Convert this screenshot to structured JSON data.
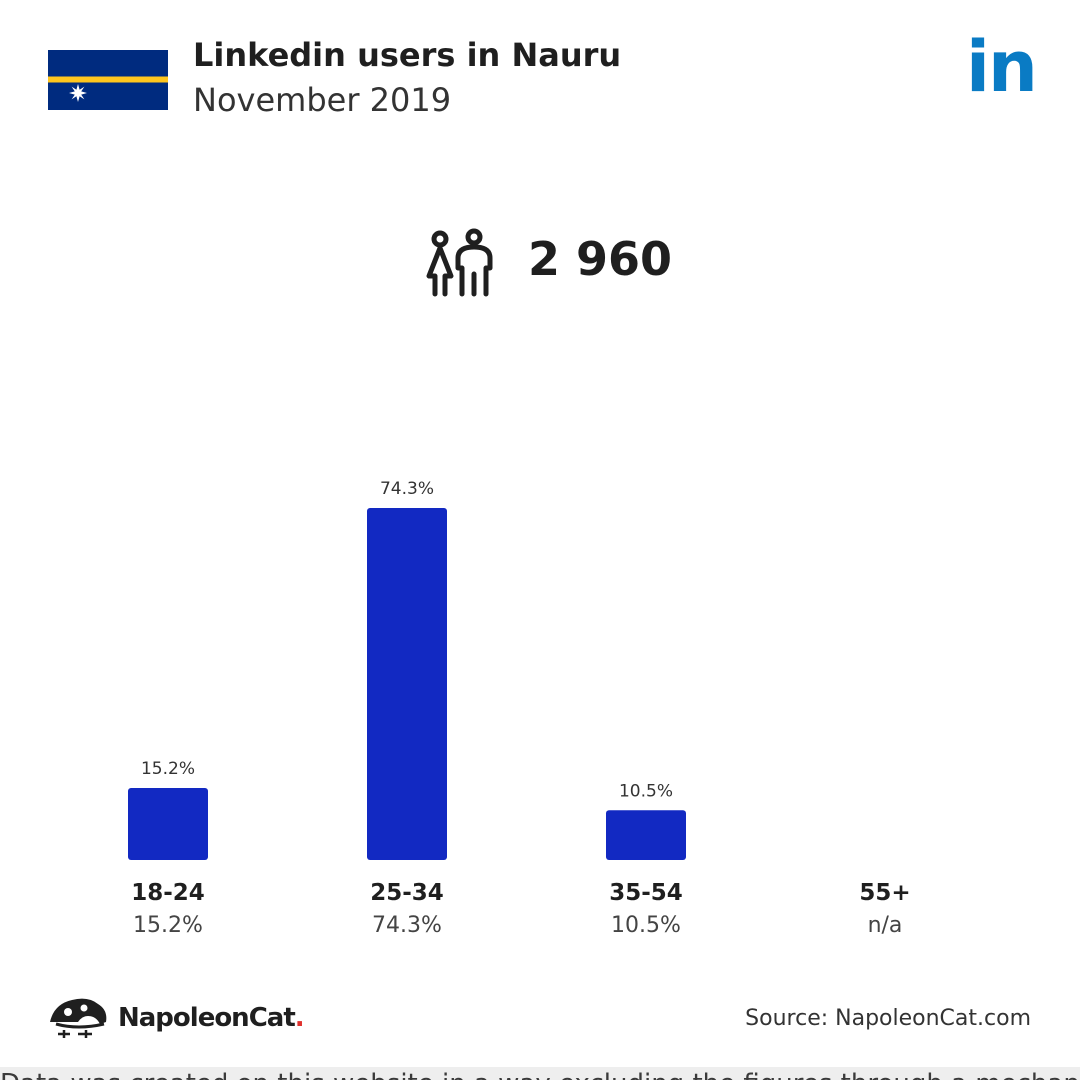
{
  "header": {
    "title": "Linkedin users in Nauru",
    "subtitle": "November 2019",
    "flag_icon": "nauru-flag",
    "logo_icon": "linkedin-logo",
    "logo_text": "in",
    "logo_color": "#0a7bc4"
  },
  "summary": {
    "icon": "users-icon",
    "total_users": "2 960"
  },
  "chart_data": {
    "type": "bar",
    "categories": [
      "18-24",
      "25-34",
      "35-54",
      "55+"
    ],
    "values": [
      15.2,
      74.3,
      10.5,
      null
    ],
    "value_labels": [
      "15.2%",
      "74.3%",
      "10.5%",
      null
    ],
    "category_values": [
      "15.2%",
      "74.3%",
      "10.5%",
      "n/a"
    ],
    "ylim": [
      0,
      74.3
    ],
    "bar_color": "#1229c2",
    "grid": false
  },
  "footer": {
    "brand_icon": "napoleoncat-logo-icon",
    "brand_name": "NapoleonCat",
    "brand_dot": ".",
    "source": "Source: NapoleonCat.com",
    "note": "Data was created on this website in a way excluding the figures through a mechanism explained"
  }
}
